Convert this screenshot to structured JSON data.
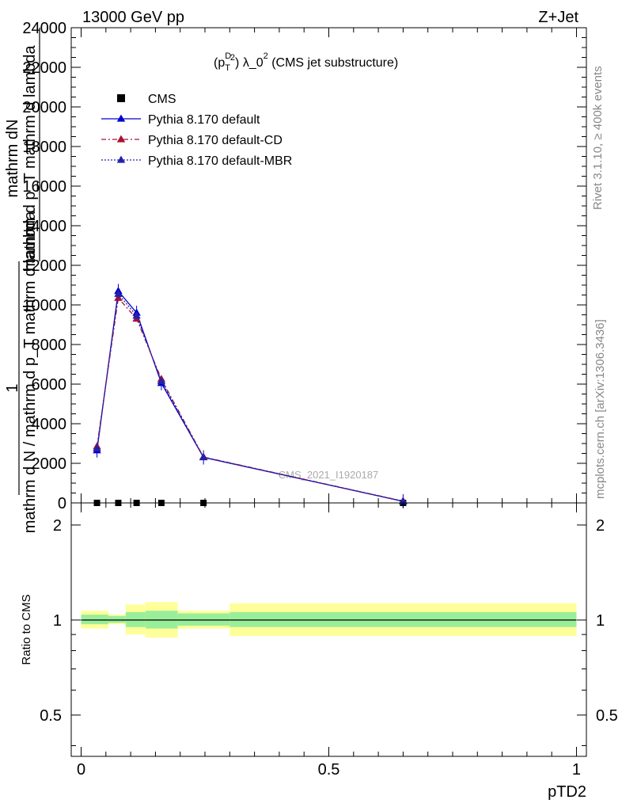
{
  "header": {
    "left_title": "13000 GeV pp",
    "right_title": "Z+Jet"
  },
  "plot_title": {
    "prefix": "(p",
    "sup_d": "D",
    "sub_t": "T",
    "sup_2": "2",
    "mid": ") λ_0",
    "sup_0": "2",
    "suffix": " (CMS jet substructure)"
  },
  "side_labels": {
    "rivet": "Rivet 3.1.10, ≥ 400k events",
    "mcplots": "mcplots.cern.ch [arXiv:1306.3436]"
  },
  "watermark": "CMS_2021_I1920187",
  "y_axis_label": {
    "line1": "mathrm dN",
    "line2": "mathrm d p_T mathrm d lambda",
    "one": "1",
    "denom": "mathrm d N / mathrm d p_T mathrm d lambda"
  },
  "ratio_ylabel": "Ratio to CMS",
  "x_axis_label": "pTD2",
  "chart_data": {
    "type": "line",
    "xlabel": "pTD2",
    "ylabel": "mathrm dN / mathrm d p_T mathrm d lambda",
    "xlim": [
      -0.02,
      1.02
    ],
    "ylim": [
      0,
      24000
    ],
    "y_ticks": [
      "0",
      "2000",
      "4000",
      "6000",
      "8000",
      "10000",
      "12000",
      "14000",
      "16000",
      "18000",
      "20000",
      "22000",
      "24000"
    ],
    "x_ticks": [
      "0",
      "0.5",
      "1"
    ],
    "legend_position": "top-left",
    "series": [
      {
        "name": "CMS",
        "color": "#000000",
        "marker": "square",
        "x": [
          0.032,
          0.075,
          0.112,
          0.162,
          0.247,
          0.65
        ],
        "y": [
          0,
          0,
          0,
          0,
          0,
          0
        ]
      },
      {
        "name": "Pythia 8.170 default",
        "color": "#0000cc",
        "marker": "triangle",
        "line": "solid",
        "x": [
          0.032,
          0.075,
          0.112,
          0.162,
          0.247,
          0.65
        ],
        "y": [
          2650,
          10700,
          9600,
          6050,
          2300,
          80
        ]
      },
      {
        "name": "Pythia 8.170 default-CD",
        "color": "#aa1133",
        "marker": "triangle",
        "line": "dashdot",
        "x": [
          0.032,
          0.075,
          0.112,
          0.162,
          0.247,
          0.65
        ],
        "y": [
          2850,
          10350,
          9300,
          6250,
          2320,
          90
        ]
      },
      {
        "name": "Pythia 8.170 default-MBR",
        "color": "#2222aa",
        "marker": "triangle",
        "line": "dotted",
        "x": [
          0.032,
          0.075,
          0.112,
          0.162,
          0.247,
          0.65
        ],
        "y": [
          2750,
          10550,
          9450,
          6150,
          2310,
          85
        ]
      }
    ],
    "ratio": {
      "ylabel": "Ratio to CMS",
      "ylim": [
        0.37,
        2.35
      ],
      "scale": "log",
      "y_ticks": [
        "0.5",
        "1",
        "2"
      ],
      "bands": [
        {
          "x0": 0.0,
          "x1": 0.055,
          "inner": [
            0.97,
            1.04
          ],
          "outer": [
            0.94,
            1.07
          ]
        },
        {
          "x0": 0.055,
          "x1": 0.09,
          "inner": [
            0.98,
            1.03
          ],
          "outer": [
            0.97,
            1.04
          ]
        },
        {
          "x0": 0.09,
          "x1": 0.13,
          "inner": [
            0.95,
            1.06
          ],
          "outer": [
            0.9,
            1.12
          ]
        },
        {
          "x0": 0.13,
          "x1": 0.195,
          "inner": [
            0.94,
            1.07
          ],
          "outer": [
            0.88,
            1.14
          ]
        },
        {
          "x0": 0.195,
          "x1": 0.3,
          "inner": [
            0.96,
            1.05
          ],
          "outer": [
            0.94,
            1.07
          ]
        },
        {
          "x0": 0.3,
          "x1": 1.0,
          "inner": [
            0.95,
            1.06
          ],
          "outer": [
            0.89,
            1.13
          ]
        }
      ]
    }
  }
}
